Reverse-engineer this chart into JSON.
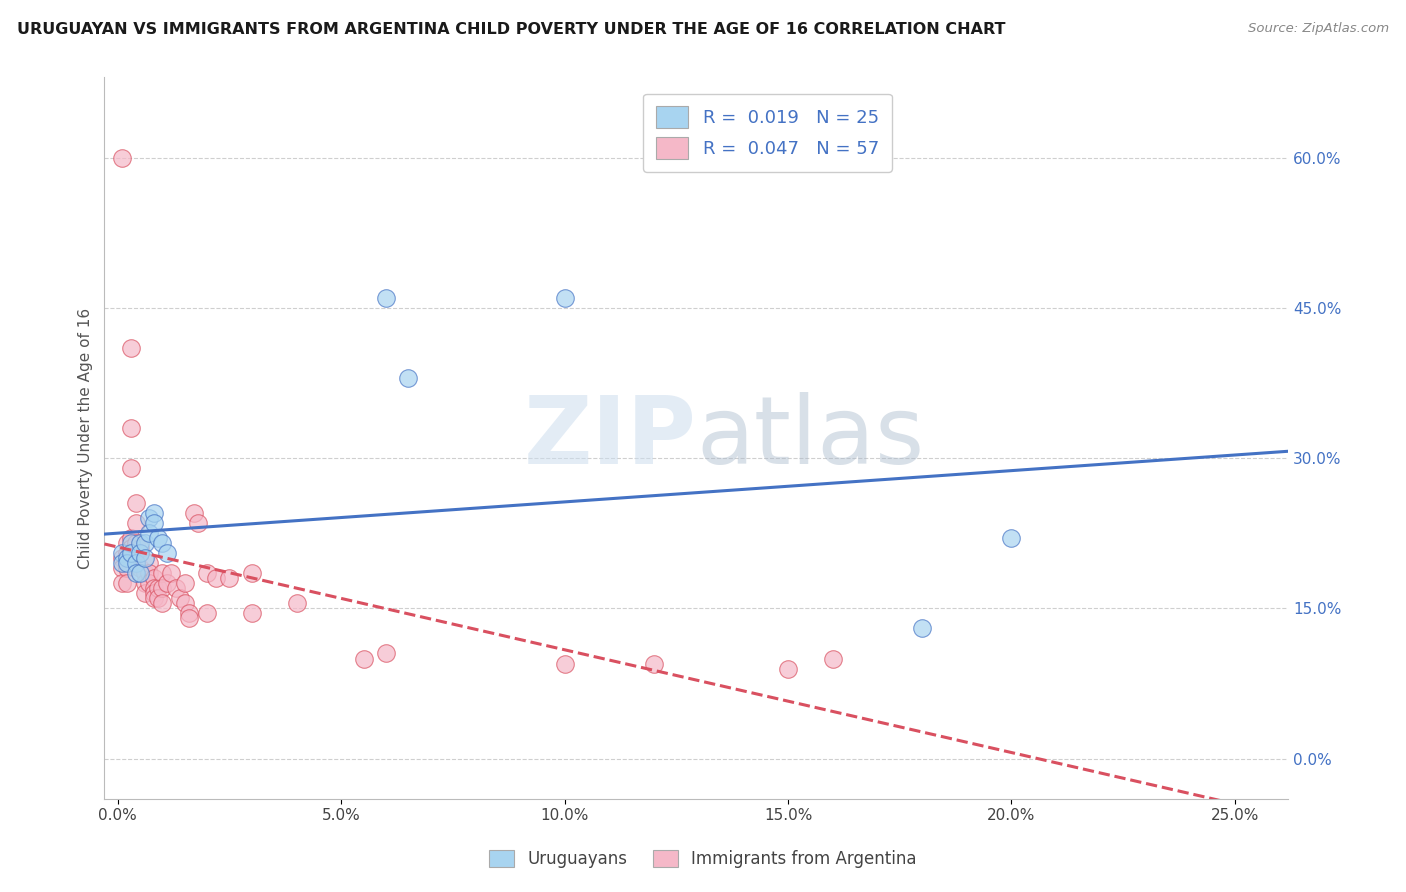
{
  "title": "URUGUAYAN VS IMMIGRANTS FROM ARGENTINA CHILD POVERTY UNDER THE AGE OF 16 CORRELATION CHART",
  "source": "Source: ZipAtlas.com",
  "ylabel": "Child Poverty Under the Age of 16",
  "x_ticks": [
    0.0,
    0.05,
    0.1,
    0.15,
    0.2,
    0.25
  ],
  "x_tick_labels": [
    "0.0%",
    "5.0%",
    "10.0%",
    "15.0%",
    "20.0%",
    "25.0%"
  ],
  "y_ticks_right": [
    0.0,
    0.15,
    0.3,
    0.45,
    0.6
  ],
  "y_tick_labels_right": [
    "0.0%",
    "15.0%",
    "30.0%",
    "45.0%",
    "60.0%"
  ],
  "xlim": [
    -0.003,
    0.262
  ],
  "ylim": [
    -0.04,
    0.68
  ],
  "legend_label1": "Uruguayans",
  "legend_label2": "Immigrants from Argentina",
  "r1": "0.019",
  "n1": "25",
  "r2": "0.047",
  "n2": "57",
  "color1": "#A8D4F0",
  "color2": "#F5B8C8",
  "line_color1": "#4472C4",
  "line_color2": "#D95060",
  "background_color": "#FFFFFF",
  "grid_color": "#BBBBBB",
  "watermark_zip": "ZIP",
  "watermark_atlas": "atlas",
  "uruguayans_x": [
    0.001,
    0.001,
    0.002,
    0.002,
    0.003,
    0.003,
    0.004,
    0.004,
    0.005,
    0.005,
    0.005,
    0.006,
    0.006,
    0.007,
    0.007,
    0.008,
    0.008,
    0.009,
    0.01,
    0.011,
    0.06,
    0.065,
    0.1,
    0.18,
    0.2
  ],
  "uruguayans_y": [
    0.205,
    0.195,
    0.2,
    0.195,
    0.215,
    0.205,
    0.195,
    0.185,
    0.215,
    0.205,
    0.185,
    0.215,
    0.2,
    0.24,
    0.225,
    0.245,
    0.235,
    0.22,
    0.215,
    0.205,
    0.46,
    0.38,
    0.46,
    0.13,
    0.22
  ],
  "argentina_x": [
    0.001,
    0.001,
    0.001,
    0.001,
    0.002,
    0.002,
    0.002,
    0.002,
    0.003,
    0.003,
    0.003,
    0.003,
    0.003,
    0.004,
    0.004,
    0.004,
    0.005,
    0.005,
    0.005,
    0.006,
    0.006,
    0.006,
    0.007,
    0.007,
    0.007,
    0.008,
    0.008,
    0.008,
    0.008,
    0.009,
    0.009,
    0.01,
    0.01,
    0.01,
    0.011,
    0.012,
    0.013,
    0.014,
    0.015,
    0.015,
    0.016,
    0.016,
    0.017,
    0.018,
    0.02,
    0.02,
    0.022,
    0.025,
    0.03,
    0.03,
    0.04,
    0.055,
    0.06,
    0.1,
    0.12,
    0.15,
    0.16
  ],
  "argentina_y": [
    0.6,
    0.2,
    0.19,
    0.175,
    0.215,
    0.205,
    0.19,
    0.175,
    0.41,
    0.33,
    0.29,
    0.22,
    0.21,
    0.255,
    0.235,
    0.215,
    0.21,
    0.205,
    0.19,
    0.185,
    0.175,
    0.165,
    0.195,
    0.185,
    0.175,
    0.18,
    0.17,
    0.165,
    0.16,
    0.17,
    0.16,
    0.185,
    0.17,
    0.155,
    0.175,
    0.185,
    0.17,
    0.16,
    0.175,
    0.155,
    0.145,
    0.14,
    0.245,
    0.235,
    0.185,
    0.145,
    0.18,
    0.18,
    0.185,
    0.145,
    0.155,
    0.1,
    0.105,
    0.095,
    0.095,
    0.09,
    0.1
  ]
}
